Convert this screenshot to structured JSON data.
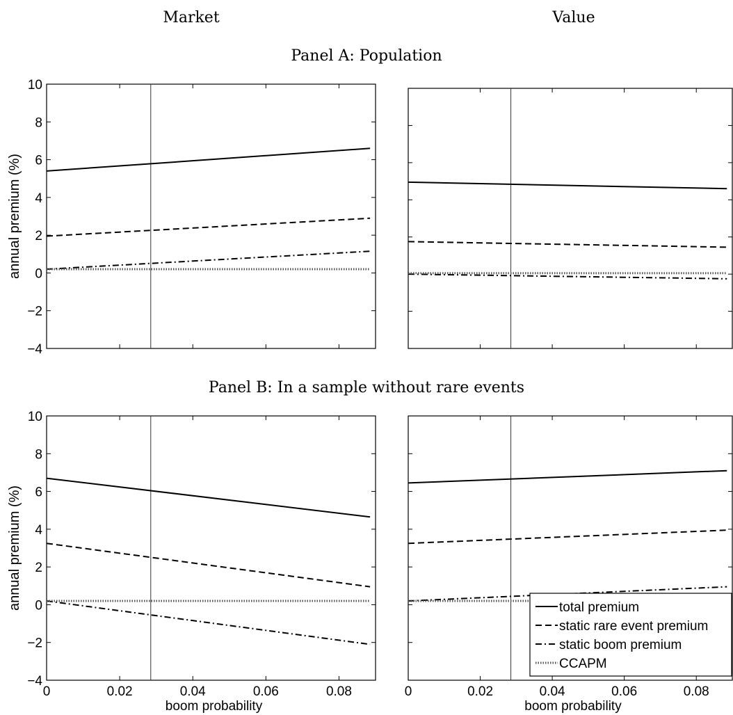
{
  "header": {
    "col_left": "Market",
    "col_right": "Value"
  },
  "panels": {
    "a_title": "Panel A: Population",
    "b_title": "Panel B: In a sample without rare events"
  },
  "colors": {
    "line": "#000000",
    "ccapm": "#555555",
    "axis": "#000000",
    "vline": "#333333"
  },
  "chart_data": [
    {
      "id": "panelA-market",
      "type": "line",
      "xlabel": "",
      "ylabel": "annual premium (%)",
      "xlim": [
        0,
        0.09
      ],
      "ylim": [
        -4,
        10
      ],
      "yticks": [
        "−4",
        "−2",
        "0",
        "2",
        "4",
        "6",
        "8",
        "10"
      ],
      "xticks": [],
      "vline_x": 0.0285,
      "series": [
        {
          "name": "total premium",
          "style": "solid",
          "x": [
            0,
            0.0885
          ],
          "y": [
            5.4,
            6.6
          ]
        },
        {
          "name": "static rare event premium",
          "style": "dashed",
          "x": [
            0,
            0.0885
          ],
          "y": [
            1.95,
            2.9
          ]
        },
        {
          "name": "static boom premium",
          "style": "dashdot",
          "x": [
            0,
            0.0885
          ],
          "y": [
            0.2,
            1.15
          ]
        },
        {
          "name": "CCAPM",
          "style": "dotted",
          "x": [
            0,
            0.0885
          ],
          "y": [
            0.2,
            0.2
          ]
        }
      ]
    },
    {
      "id": "panelA-value",
      "type": "line",
      "xlabel": "",
      "ylabel": "",
      "xlim": [
        0,
        0.09
      ],
      "ylim": [
        -4,
        10
      ],
      "yticks": [],
      "xticks": [],
      "vline_x": 0.0285,
      "series": [
        {
          "name": "total premium",
          "style": "solid",
          "x": [
            0,
            0.0885
          ],
          "y": [
            4.95,
            4.6
          ]
        },
        {
          "name": "static rare event premium",
          "style": "dashed",
          "x": [
            0,
            0.0885
          ],
          "y": [
            1.75,
            1.45
          ]
        },
        {
          "name": "static boom premium",
          "style": "dashdot",
          "x": [
            0,
            0.0885
          ],
          "y": [
            0.0,
            -0.25
          ]
        },
        {
          "name": "CCAPM",
          "style": "dotted",
          "x": [
            0,
            0.0885
          ],
          "y": [
            0.05,
            0.05
          ]
        }
      ]
    },
    {
      "id": "panelB-market",
      "type": "line",
      "xlabel": "boom probability",
      "ylabel": "annual premium (%)",
      "xlim": [
        0,
        0.09
      ],
      "ylim": [
        -4,
        10
      ],
      "yticks": [
        "−4",
        "−2",
        "0",
        "2",
        "4",
        "6",
        "8",
        "10"
      ],
      "xticks": [
        "0",
        "0.02",
        "0.04",
        "0.06",
        "0.08"
      ],
      "vline_x": 0.0285,
      "series": [
        {
          "name": "total premium",
          "style": "solid",
          "x": [
            0,
            0.0885
          ],
          "y": [
            6.7,
            4.65
          ]
        },
        {
          "name": "static rare event premium",
          "style": "dashed",
          "x": [
            0,
            0.0885
          ],
          "y": [
            3.25,
            0.95
          ]
        },
        {
          "name": "static boom premium",
          "style": "dashdot",
          "x": [
            0,
            0.0885
          ],
          "y": [
            0.2,
            -2.1
          ]
        },
        {
          "name": "CCAPM",
          "style": "dotted",
          "x": [
            0,
            0.0885
          ],
          "y": [
            0.2,
            0.2
          ]
        }
      ]
    },
    {
      "id": "panelB-value",
      "type": "line",
      "xlabel": "boom probability",
      "ylabel": "",
      "xlim": [
        0,
        0.09
      ],
      "ylim": [
        -4,
        10
      ],
      "yticks": [],
      "xticks": [
        "0",
        "0.02",
        "0.04",
        "0.06",
        "0.08"
      ],
      "vline_x": 0.0285,
      "legend": "bottom-right",
      "series": [
        {
          "name": "total premium",
          "style": "solid",
          "x": [
            0,
            0.0885
          ],
          "y": [
            6.45,
            7.1
          ]
        },
        {
          "name": "static rare event premium",
          "style": "dashed",
          "x": [
            0,
            0.0885
          ],
          "y": [
            3.25,
            3.95
          ]
        },
        {
          "name": "static boom premium",
          "style": "dashdot",
          "x": [
            0,
            0.0885
          ],
          "y": [
            0.2,
            0.95
          ]
        },
        {
          "name": "CCAPM",
          "style": "dotted",
          "x": [
            0,
            0.0885
          ],
          "y": [
            0.2,
            0.2
          ]
        }
      ]
    }
  ]
}
